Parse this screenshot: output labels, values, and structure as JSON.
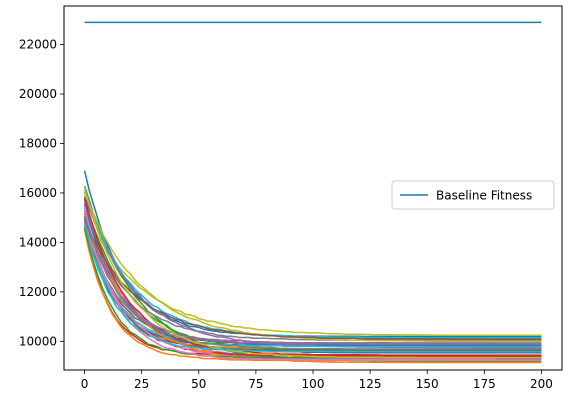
{
  "chart_data": {
    "type": "line",
    "title": "",
    "xlabel": "",
    "ylabel": "",
    "xlim": [
      -9,
      209
    ],
    "ylim": [
      8840,
      23560
    ],
    "grid": false,
    "legend": {
      "placement": "center-right",
      "entries": [
        "Baseline Fitness"
      ]
    },
    "x_ticks": [
      0,
      25,
      50,
      75,
      100,
      125,
      150,
      175,
      200
    ],
    "y_ticks": [
      10000,
      12000,
      14000,
      16000,
      18000,
      20000,
      22000
    ],
    "colors": [
      "#1f77b4",
      "#ff7f0e",
      "#2ca02c",
      "#d62728",
      "#9467bd",
      "#8c564b",
      "#e377c2",
      "#7f7f7f",
      "#bcbd22",
      "#17becf"
    ],
    "baseline": {
      "name": "Baseline Fitness",
      "x": [
        0,
        200
      ],
      "y": [
        22900,
        22900
      ],
      "color": "#1f77b4"
    },
    "runs": [
      {
        "start": 16900,
        "final": 10200,
        "rate": 0.06,
        "stop": 200
      },
      {
        "start": 15200,
        "final": 9700,
        "rate": 0.075,
        "stop": 200
      },
      {
        "start": 16300,
        "final": 9200,
        "rate": 0.045,
        "stop": 200
      },
      {
        "start": 14600,
        "final": 9450,
        "rate": 0.09,
        "stop": 200
      },
      {
        "start": 15800,
        "final": 9300,
        "rate": 0.055,
        "stop": 200
      },
      {
        "start": 14900,
        "final": 9900,
        "rate": 0.07,
        "stop": 200
      },
      {
        "start": 15500,
        "final": 9200,
        "rate": 0.05,
        "stop": 110
      },
      {
        "start": 14700,
        "final": 9950,
        "rate": 0.065,
        "stop": 200
      },
      {
        "start": 15300,
        "final": 10250,
        "rate": 0.04,
        "stop": 200
      },
      {
        "start": 16100,
        "final": 10150,
        "rate": 0.05,
        "stop": 200
      },
      {
        "start": 15000,
        "final": 9850,
        "rate": 0.08,
        "stop": 200
      },
      {
        "start": 14500,
        "final": 9250,
        "rate": 0.085,
        "stop": 200
      },
      {
        "start": 15700,
        "final": 9600,
        "rate": 0.05,
        "stop": 200
      },
      {
        "start": 14800,
        "final": 9400,
        "rate": 0.065,
        "stop": 200
      },
      {
        "start": 15900,
        "final": 9750,
        "rate": 0.045,
        "stop": 200
      },
      {
        "start": 15100,
        "final": 9650,
        "rate": 0.075,
        "stop": 200
      },
      {
        "start": 14900,
        "final": 9300,
        "rate": 0.06,
        "stop": 180
      },
      {
        "start": 15400,
        "final": 10050,
        "rate": 0.055,
        "stop": 200
      },
      {
        "start": 16000,
        "final": 10000,
        "rate": 0.04,
        "stop": 200
      },
      {
        "start": 14700,
        "final": 9800,
        "rate": 0.07,
        "stop": 200
      },
      {
        "start": 15600,
        "final": 9550,
        "rate": 0.06,
        "stop": 200
      },
      {
        "start": 15200,
        "final": 9150,
        "rate": 0.05,
        "stop": 200
      },
      {
        "start": 14600,
        "final": 9350,
        "rate": 0.08,
        "stop": 200
      },
      {
        "start": 15800,
        "final": 9450,
        "rate": 0.055,
        "stop": 200
      },
      {
        "start": 15300,
        "final": 9900,
        "rate": 0.065,
        "stop": 200
      },
      {
        "start": 14900,
        "final": 10100,
        "rate": 0.045,
        "stop": 200
      },
      {
        "start": 15500,
        "final": 9250,
        "rate": 0.07,
        "stop": 200
      },
      {
        "start": 15100,
        "final": 9700,
        "rate": 0.06,
        "stop": 200
      },
      {
        "start": 16200,
        "final": 9350,
        "rate": 0.05,
        "stop": 200
      },
      {
        "start": 14800,
        "final": 9600,
        "rate": 0.075,
        "stop": 200
      }
    ]
  }
}
